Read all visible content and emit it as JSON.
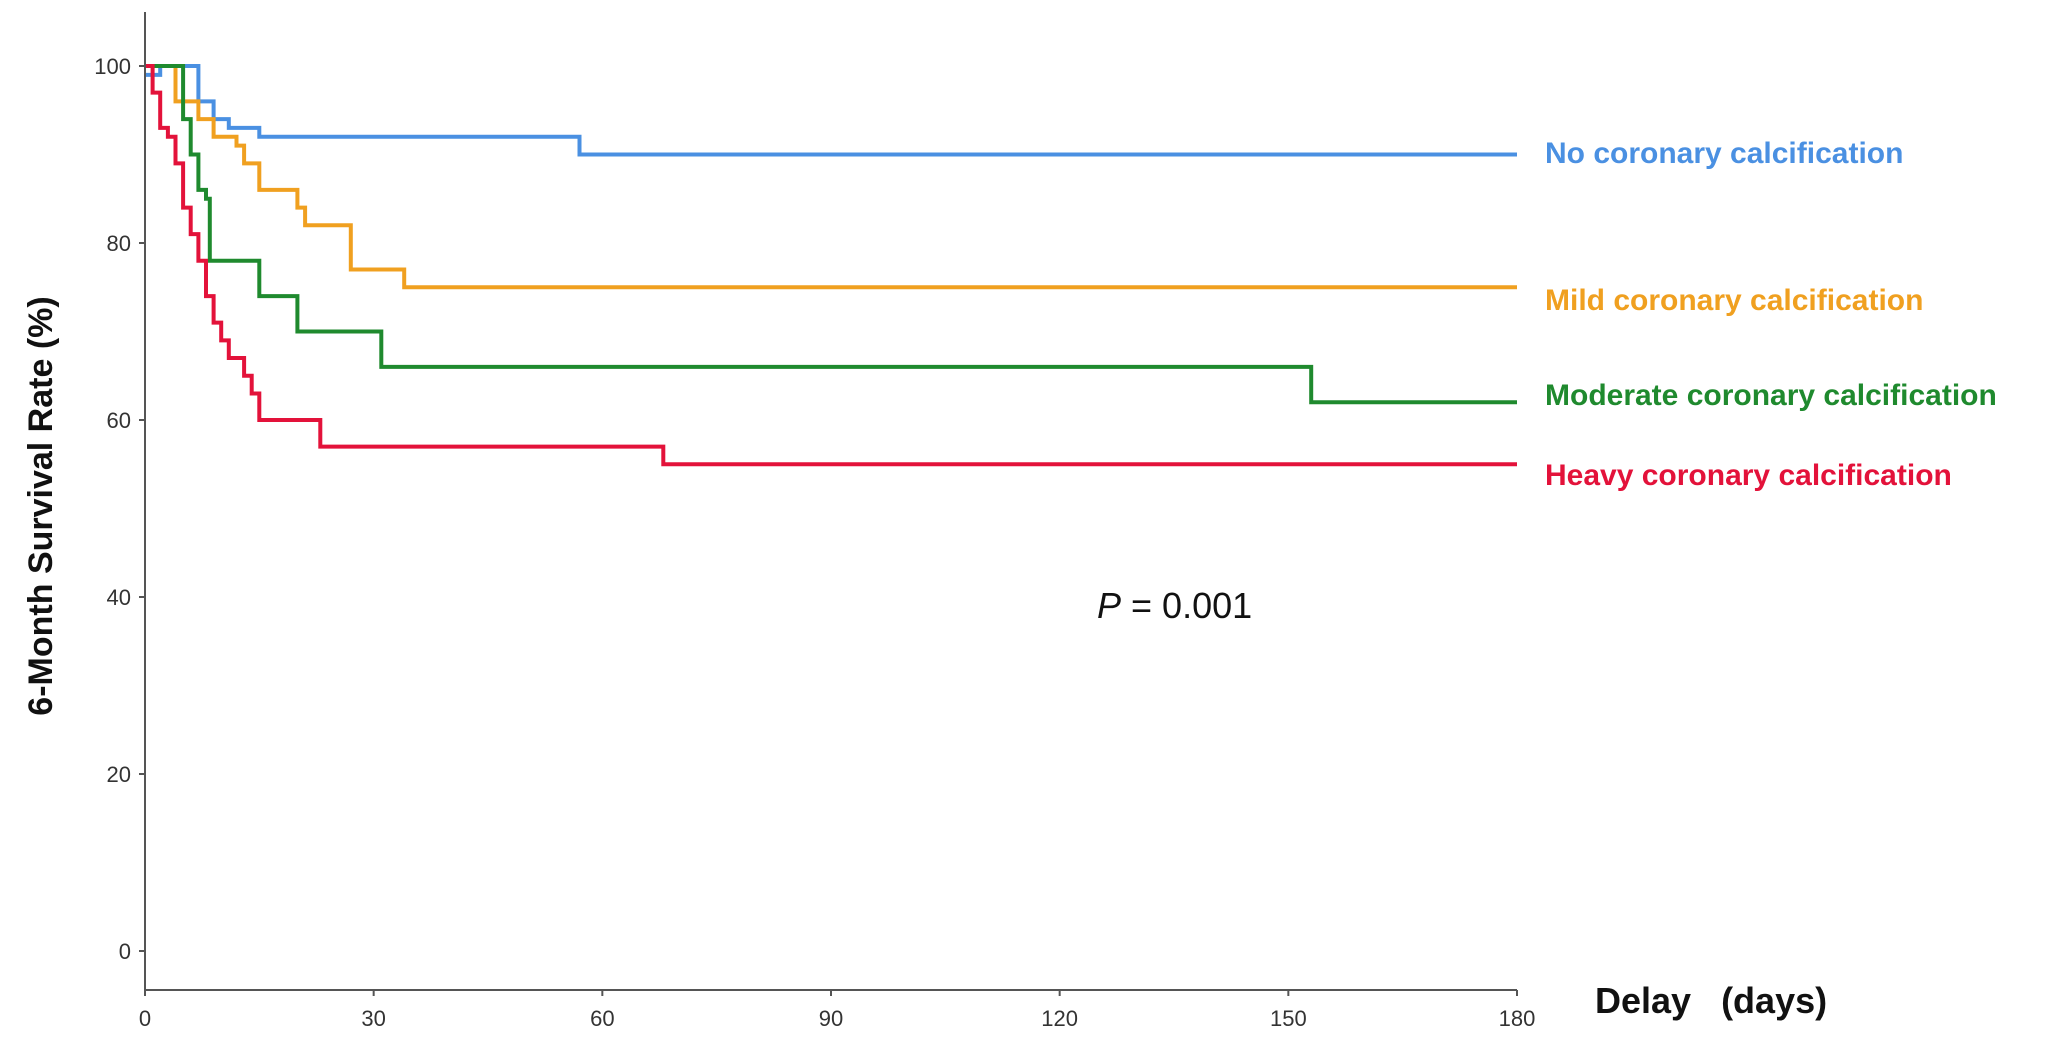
{
  "chart_data": {
    "type": "line",
    "step": true,
    "xlabel": "Delay   (days)",
    "ylabel": "6-Month Survival Rate (%)",
    "xlim": [
      0,
      180
    ],
    "ylim": [
      0,
      105
    ],
    "xticks": [
      0,
      30,
      60,
      90,
      120,
      150,
      180
    ],
    "yticks": [
      0,
      20,
      40,
      60,
      80,
      100
    ],
    "grid": false,
    "legend": "inline-right",
    "annotation": {
      "prefix": "P",
      "text": " = 0.001"
    },
    "series": [
      {
        "name": "No coronary calcification",
        "color": "#4a90e2",
        "points": [
          [
            0,
            99
          ],
          [
            2,
            100
          ],
          [
            7,
            96
          ],
          [
            9,
            94
          ],
          [
            11,
            93
          ],
          [
            15,
            92
          ],
          [
            25,
            92
          ],
          [
            57,
            90
          ],
          [
            180,
            90
          ]
        ]
      },
      {
        "name": "Mild coronary calcification",
        "color": "#f0a020",
        "points": [
          [
            0,
            100
          ],
          [
            4,
            96
          ],
          [
            7,
            94
          ],
          [
            9,
            92
          ],
          [
            12,
            91
          ],
          [
            13,
            89
          ],
          [
            15,
            86
          ],
          [
            19,
            86
          ],
          [
            20,
            84
          ],
          [
            21,
            82
          ],
          [
            27,
            82
          ],
          [
            27,
            77
          ],
          [
            34,
            77
          ],
          [
            34,
            75
          ],
          [
            180,
            75
          ]
        ]
      },
      {
        "name": "Moderate coronary calcification",
        "color": "#1f8a2e",
        "points": [
          [
            0,
            100
          ],
          [
            4,
            100
          ],
          [
            5,
            94
          ],
          [
            6,
            90
          ],
          [
            7,
            86
          ],
          [
            8,
            85
          ],
          [
            8.5,
            78
          ],
          [
            15,
            78
          ],
          [
            15,
            74
          ],
          [
            20,
            74
          ],
          [
            20,
            70
          ],
          [
            31,
            70
          ],
          [
            31,
            66
          ],
          [
            153,
            66
          ],
          [
            153,
            62
          ],
          [
            180,
            62
          ]
        ]
      },
      {
        "name": "Heavy coronary calcification",
        "color": "#e3123a",
        "points": [
          [
            0,
            100
          ],
          [
            1,
            97
          ],
          [
            2,
            93
          ],
          [
            3,
            92
          ],
          [
            4,
            89
          ],
          [
            5,
            84
          ],
          [
            6,
            81
          ],
          [
            7,
            78
          ],
          [
            8,
            74
          ],
          [
            9,
            71
          ],
          [
            10,
            69
          ],
          [
            11,
            67
          ],
          [
            13,
            65
          ],
          [
            14,
            63
          ],
          [
            15,
            60
          ],
          [
            23,
            60
          ],
          [
            23,
            57
          ],
          [
            68,
            57
          ],
          [
            68,
            55
          ],
          [
            180,
            55
          ]
        ]
      }
    ]
  }
}
